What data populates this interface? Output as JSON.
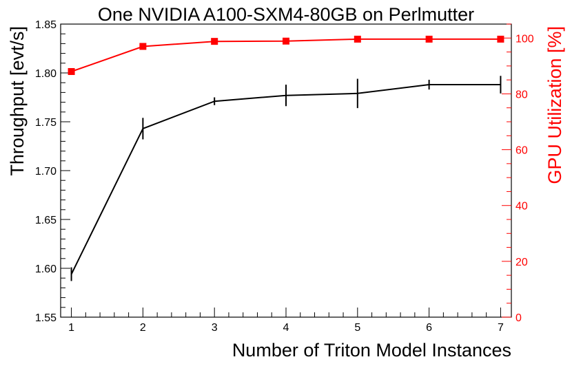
{
  "chart_data": {
    "type": "line",
    "title": "One NVIDIA A100-SXM4-80GB on Perlmutter",
    "xlabel": "Number of Triton Model Instances",
    "ylabel": "Throughput [evt/s]",
    "y2label": "GPU Utilization [%]",
    "xlim": [
      0.85,
      7.15
    ],
    "ylim": [
      1.55,
      1.85
    ],
    "y2lim": [
      0,
      105
    ],
    "x_ticks": [
      1,
      2,
      3,
      4,
      5,
      6,
      7
    ],
    "y_ticks": [
      1.55,
      1.6,
      1.65,
      1.7,
      1.75,
      1.8,
      1.85
    ],
    "y_tick_labels": [
      "1.55",
      "1.60",
      "1.65",
      "1.70",
      "1.75",
      "1.80",
      "1.85"
    ],
    "y2_ticks": [
      0,
      20,
      40,
      60,
      80,
      100
    ],
    "series": [
      {
        "name": "Throughput",
        "axis": "left",
        "color": "#000000",
        "x": [
          1,
          2,
          3,
          4,
          5,
          6,
          7
        ],
        "values": [
          1.594,
          1.743,
          1.771,
          1.777,
          1.779,
          1.788,
          1.788
        ],
        "errors": [
          0.007,
          0.011,
          0.004,
          0.011,
          0.015,
          0.005,
          0.009
        ]
      },
      {
        "name": "GPU Utilization",
        "axis": "right",
        "color": "#ff0000",
        "marker": "square",
        "x": [
          1,
          2,
          3,
          4,
          5,
          6,
          7
        ],
        "values": [
          88.0,
          97.0,
          98.8,
          98.9,
          99.6,
          99.6,
          99.6
        ]
      }
    ]
  }
}
